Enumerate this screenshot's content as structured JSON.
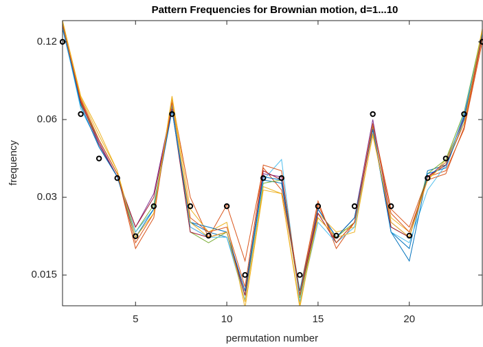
{
  "chart_data": {
    "type": "line",
    "title": "Pattern Frequencies for Brownian motion, d=1...10",
    "x_label": "permutation number",
    "y_label": "frequency",
    "x": [
      1,
      2,
      3,
      4,
      5,
      6,
      7,
      8,
      9,
      10,
      11,
      12,
      13,
      14,
      15,
      16,
      17,
      18,
      19,
      20,
      21,
      22,
      23,
      24
    ],
    "xlim": [
      1,
      24
    ],
    "xticks": [
      5,
      10,
      15,
      20
    ],
    "ylim": [
      0.0114,
      0.145
    ],
    "yticks": [
      0.015,
      0.03,
      0.06,
      0.12
    ],
    "log_y": true,
    "series": [
      {
        "color": "#0072BD",
        "values": [
          0.135,
          0.068,
          0.047,
          0.036,
          0.022,
          0.027,
          0.066,
          0.024,
          0.022,
          0.021,
          0.0125,
          0.035,
          0.034,
          0.0125,
          0.027,
          0.021,
          0.025,
          0.055,
          0.022,
          0.019,
          0.038,
          0.04,
          0.062,
          0.13
        ]
      },
      {
        "color": "#D95319",
        "values": [
          0.14,
          0.072,
          0.05,
          0.037,
          0.019,
          0.025,
          0.072,
          0.03,
          0.021,
          0.028,
          0.017,
          0.039,
          0.032,
          0.013,
          0.029,
          0.019,
          0.024,
          0.058,
          0.027,
          0.023,
          0.036,
          0.038,
          0.055,
          0.12
        ]
      },
      {
        "color": "#EDB120",
        "values": [
          0.145,
          0.074,
          0.054,
          0.038,
          0.021,
          0.026,
          0.074,
          0.027,
          0.022,
          0.024,
          0.0112,
          0.032,
          0.031,
          0.0112,
          0.026,
          0.022,
          0.023,
          0.052,
          0.025,
          0.022,
          0.035,
          0.042,
          0.06,
          0.135
        ]
      },
      {
        "color": "#7E2F8E",
        "values": [
          0.14,
          0.07,
          0.049,
          0.036,
          0.023,
          0.031,
          0.068,
          0.023,
          0.021,
          0.022,
          0.013,
          0.037,
          0.036,
          0.0125,
          0.027,
          0.021,
          0.025,
          0.06,
          0.024,
          0.021,
          0.036,
          0.041,
          0.061,
          0.13
        ]
      },
      {
        "color": "#77AC30",
        "values": [
          0.142,
          0.069,
          0.05,
          0.037,
          0.022,
          0.028,
          0.067,
          0.022,
          0.02,
          0.022,
          0.0125,
          0.034,
          0.035,
          0.0122,
          0.025,
          0.021,
          0.024,
          0.056,
          0.023,
          0.021,
          0.037,
          0.042,
          0.064,
          0.132
        ]
      },
      {
        "color": "#4DBEEE",
        "values": [
          0.138,
          0.066,
          0.048,
          0.036,
          0.022,
          0.027,
          0.069,
          0.023,
          0.021,
          0.021,
          0.012,
          0.035,
          0.042,
          0.0118,
          0.024,
          0.02,
          0.023,
          0.057,
          0.022,
          0.02,
          0.032,
          0.04,
          0.063,
          0.128
        ]
      },
      {
        "color": "#A2142F",
        "values": [
          0.14,
          0.07,
          0.048,
          0.036,
          0.023,
          0.03,
          0.066,
          0.022,
          0.021,
          0.022,
          0.0125,
          0.038,
          0.035,
          0.0125,
          0.026,
          0.02,
          0.024,
          0.055,
          0.023,
          0.021,
          0.036,
          0.04,
          0.058,
          0.128
        ]
      },
      {
        "color": "#0072BD",
        "values": [
          0.139,
          0.068,
          0.047,
          0.036,
          0.021,
          0.027,
          0.065,
          0.024,
          0.023,
          0.022,
          0.013,
          0.036,
          0.035,
          0.013,
          0.027,
          0.021,
          0.025,
          0.055,
          0.022,
          0.017,
          0.037,
          0.039,
          0.06,
          0.13
        ]
      },
      {
        "color": "#D95319",
        "values": [
          0.14,
          0.071,
          0.05,
          0.037,
          0.02,
          0.026,
          0.07,
          0.025,
          0.022,
          0.023,
          0.0135,
          0.04,
          0.038,
          0.0125,
          0.028,
          0.02,
          0.024,
          0.057,
          0.026,
          0.022,
          0.035,
          0.037,
          0.056,
          0.125
        ]
      },
      {
        "color": "#EDB120",
        "values": [
          0.145,
          0.073,
          0.052,
          0.038,
          0.021,
          0.026,
          0.073,
          0.024,
          0.021,
          0.022,
          0.0118,
          0.033,
          0.031,
          0.0115,
          0.025,
          0.021,
          0.022,
          0.053,
          0.024,
          0.021,
          0.035,
          0.041,
          0.058,
          0.133
        ]
      }
    ],
    "points": {
      "color": "#000000",
      "values": [
        0.12,
        0.063,
        0.0424,
        0.0356,
        0.0212,
        0.0277,
        0.063,
        0.0277,
        0.0213,
        0.0277,
        0.015,
        0.0356,
        0.0356,
        0.015,
        0.0277,
        0.0213,
        0.0277,
        0.063,
        0.0277,
        0.0213,
        0.0356,
        0.0424,
        0.063,
        0.12
      ]
    }
  }
}
